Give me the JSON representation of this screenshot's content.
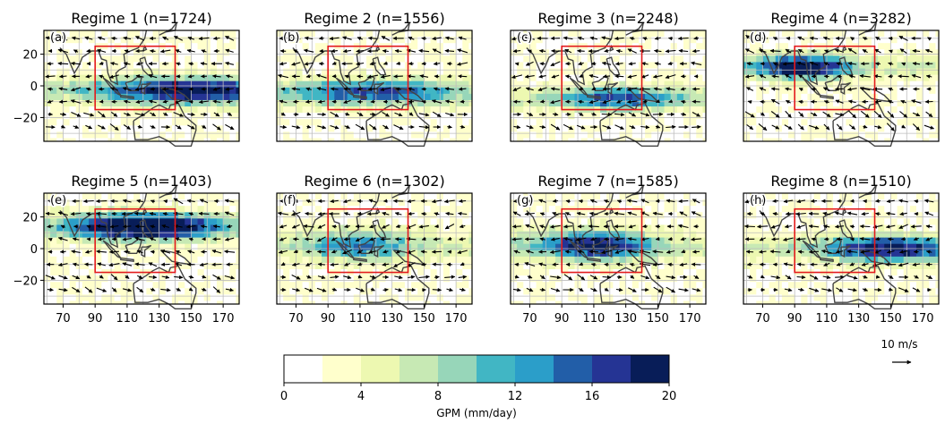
{
  "chart_data": {
    "type": "heatmap",
    "x_ticks": [
      70,
      90,
      110,
      130,
      150,
      170
    ],
    "y_ticks": [
      20,
      0,
      -20
    ],
    "y_tick_labels": [
      "20",
      "0",
      "−20"
    ],
    "xlim": [
      58,
      180
    ],
    "ylim": [
      -35,
      35
    ],
    "box": {
      "lon_range": [
        90,
        140
      ],
      "lat_range": [
        -15,
        25
      ],
      "color": "#e31a1c"
    },
    "panels": [
      {
        "title": "Regime 1 (n=1724)",
        "label": "(a)",
        "n": 1724
      },
      {
        "title": "Regime 2 (n=1556)",
        "label": "(b)",
        "n": 1556
      },
      {
        "title": "Regime 3 (n=2248)",
        "label": "(c)",
        "n": 2248
      },
      {
        "title": "Regime 4 (n=3282)",
        "label": "(d)",
        "n": 3282
      },
      {
        "title": "Regime 5 (n=1403)",
        "label": "(e)",
        "n": 1403
      },
      {
        "title": "Regime 6 (n=1302)",
        "label": "(f)",
        "n": 1302
      },
      {
        "title": "Regime 7 (n=1585)",
        "label": "(g)",
        "n": 1585
      },
      {
        "title": "Regime 8 (n=1510)",
        "label": "(h)",
        "n": 1510
      }
    ],
    "colorbar": {
      "label": "GPM (mm/day)",
      "range": [
        0,
        20
      ],
      "ticks": [
        "0",
        "4",
        "8",
        "12",
        "16",
        "20"
      ],
      "colors": [
        "#ffffff",
        "#ffffcc",
        "#edf8b1",
        "#c7e9b4",
        "#97d6b9",
        "#41b6c4",
        "#2b9ec9",
        "#225ea8",
        "#253494",
        "#081d58"
      ]
    },
    "quiver_key": {
      "label": "10 m/s"
    }
  }
}
